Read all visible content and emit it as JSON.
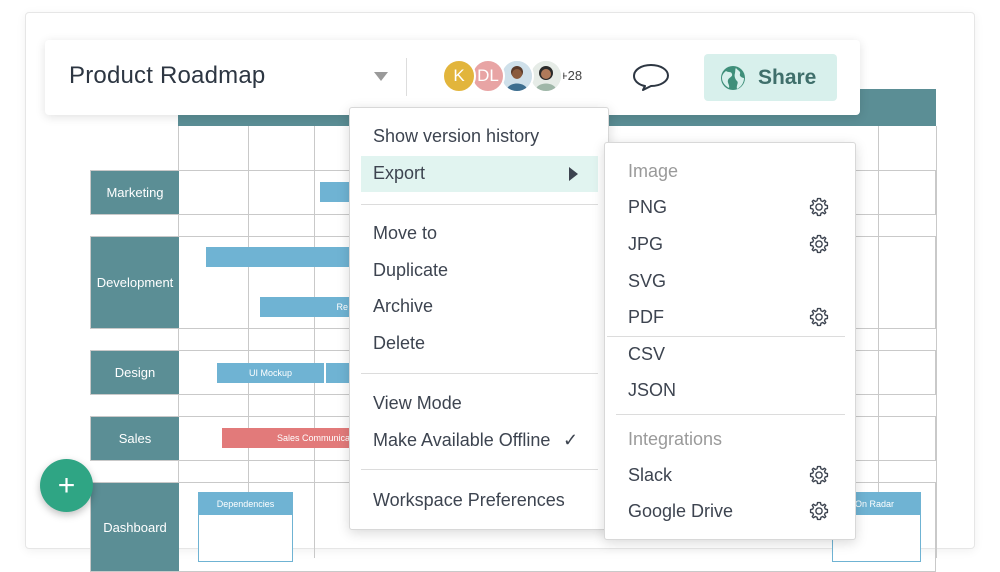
{
  "document": {
    "title": "Product Roadmap"
  },
  "collaborators": {
    "avatars": [
      {
        "initial": "K",
        "color": "#e2b53c"
      },
      {
        "initial": "DL",
        "color": "#e8a4a4"
      },
      {
        "initial": "",
        "color": "#3d6e8f"
      },
      {
        "initial": "",
        "color": "#9fb7a8"
      }
    ],
    "more_count": "+28"
  },
  "share": {
    "label": "Share"
  },
  "roadmap": {
    "lanes": [
      {
        "label": "Marketing"
      },
      {
        "label": "Development"
      },
      {
        "label": "Design"
      },
      {
        "label": "Sales"
      },
      {
        "label": "Dashboard"
      }
    ],
    "tasks": {
      "dev_second": "Re",
      "ui_mockup": "UI Mockup",
      "sales_comm": "Sales Communicati"
    },
    "cards": {
      "dependencies": "Dependencies",
      "on_radar": "On Radar"
    }
  },
  "context_menu": {
    "show_version_history": "Show version history",
    "export": "Export",
    "move_to": "Move to",
    "duplicate": "Duplicate",
    "archive": "Archive",
    "delete": "Delete",
    "view_mode": "View Mode",
    "make_offline": "Make Available Offline",
    "offline_check": "✓",
    "workspace_prefs": "Workspace Preferences"
  },
  "export_menu": {
    "image_header": "Image",
    "png": "PNG",
    "jpg": "JPG",
    "svg": "SVG",
    "pdf": "PDF",
    "csv": "CSV",
    "json": "JSON",
    "integrations_header": "Integrations",
    "slack": "Slack",
    "google_drive": "Google Drive"
  },
  "fab": {
    "label": "+"
  },
  "colors": {
    "accent": "#5b8e95",
    "share_bg": "#d8f0ec",
    "highlight": "#e1f4f0",
    "fab": "#2fa584"
  }
}
